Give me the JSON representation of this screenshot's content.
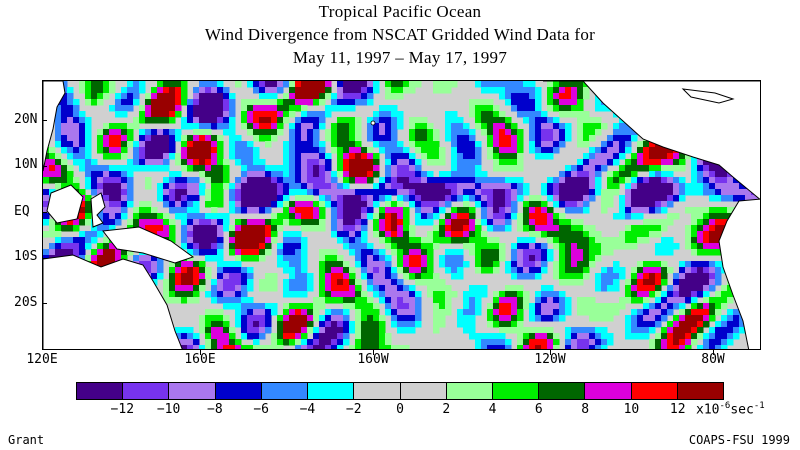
{
  "title": {
    "line1": "Tropical Pacific Ocean",
    "line2": "Wind Divergence from NSCAT Gridded Wind Data for",
    "line3": "May 11, 1997 – May 17, 1997"
  },
  "axes": {
    "lat_labels": [
      "20N",
      "10N",
      "EQ",
      "10S",
      "20S"
    ],
    "lon_labels": [
      "120E",
      "160E",
      "160W",
      "120W",
      "80W"
    ]
  },
  "colorbar": {
    "colors": [
      "#440088",
      "#7733ee",
      "#aa77ee",
      "#0000cc",
      "#3388ff",
      "#00ffff",
      "#d0d0d0",
      "#d0d0d0",
      "#99ff99",
      "#00ee00",
      "#006600",
      "#dd00dd",
      "#ff0000",
      "#990000"
    ],
    "labels": [
      "-12",
      "-10",
      "-8",
      "-6",
      "-4",
      "-2",
      "0",
      "2",
      "4",
      "6",
      "8",
      "10",
      "12"
    ],
    "units_base": "x10",
    "units_exp": "-6",
    "units_rest": "sec",
    "units_exp2": "-1"
  },
  "credits": {
    "left": "Grant",
    "right": "COAPS-FSU 1999"
  },
  "map": {
    "land_color": "#ffffff",
    "coast_color": "#000000"
  }
}
